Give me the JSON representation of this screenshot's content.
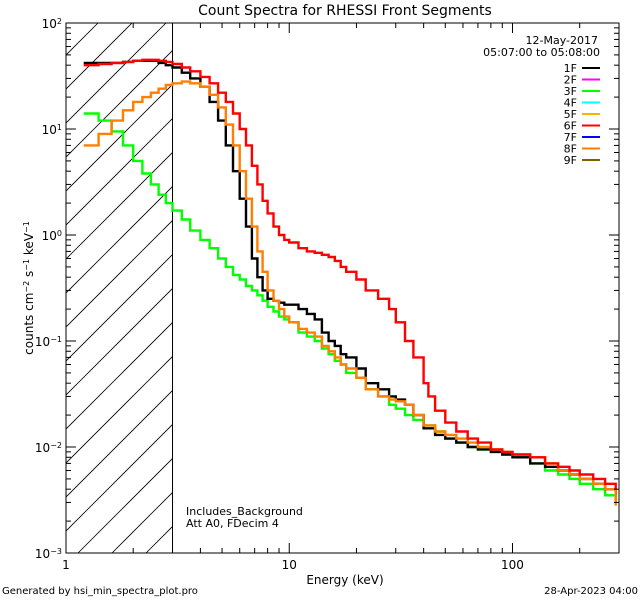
{
  "chart_data": {
    "type": "line",
    "title": "Count Spectra for RHESSI Front Segments",
    "xlabel": "Energy (keV)",
    "ylabel": "counts cm-2 s-1 keV-1",
    "x_scale": "log",
    "y_scale": "log",
    "xlim": [
      1,
      300
    ],
    "ylim": [
      0.001,
      100
    ],
    "x_ticks": [
      {
        "v": 1,
        "label": "1"
      },
      {
        "v": 10,
        "label": "10"
      },
      {
        "v": 100,
        "label": "100"
      }
    ],
    "y_ticks": [
      {
        "v": 0.001,
        "base": "10",
        "exp": "−3"
      },
      {
        "v": 0.01,
        "base": "10",
        "exp": "−2"
      },
      {
        "v": 0.1,
        "base": "10",
        "exp": "−1"
      },
      {
        "v": 1,
        "base": "10",
        "exp": "0"
      },
      {
        "v": 10,
        "base": "10",
        "exp": "1"
      },
      {
        "v": 100,
        "base": "10",
        "exp": "2"
      }
    ],
    "shaded_region": {
      "xmin": 1,
      "xmax": 3,
      "pattern": "diagonal-hatch"
    },
    "vertical_line_at": 3,
    "date_label": "12-May-2017",
    "time_range": "05:07:00 to 05:08:00",
    "annotations": [
      "Includes_Background",
      "Att A0, FDecim 4"
    ],
    "footer_left": "Generated by hsi_min_spectra_plot.pro",
    "footer_right": "28-Apr-2023 04:00",
    "series": [
      {
        "name": "1F",
        "color": "#000000",
        "x": [
          1.2,
          1.4,
          1.6,
          1.8,
          2,
          2.2,
          2.4,
          2.6,
          2.8,
          3,
          3.3,
          3.6,
          4,
          4.4,
          4.8,
          5.2,
          5.6,
          6,
          6.4,
          6.8,
          7.2,
          7.6,
          8,
          8.5,
          9,
          9.5,
          10,
          11,
          12,
          13,
          14,
          15,
          16,
          17,
          18,
          20,
          22,
          25,
          28,
          30,
          33,
          36,
          40,
          45,
          50,
          56,
          63,
          70,
          80,
          90,
          100,
          120,
          140,
          160,
          180,
          200,
          230,
          260,
          290
        ],
        "y": [
          42,
          42,
          42,
          43,
          44,
          44,
          44,
          42,
          40,
          38,
          34,
          30,
          25,
          18,
          12,
          7,
          4,
          2.2,
          1.2,
          0.6,
          0.4,
          0.3,
          0.25,
          0.24,
          0.23,
          0.22,
          0.22,
          0.2,
          0.18,
          0.16,
          0.12,
          0.1,
          0.09,
          0.075,
          0.07,
          0.055,
          0.04,
          0.035,
          0.03,
          0.028,
          0.025,
          0.02,
          0.015,
          0.013,
          0.012,
          0.011,
          0.01,
          0.0095,
          0.009,
          0.0085,
          0.008,
          0.007,
          0.0065,
          0.006,
          0.0055,
          0.005,
          0.0045,
          0.004,
          0.0035
        ]
      },
      {
        "name": "2F",
        "color": "#ff00ff",
        "x": [],
        "y": []
      },
      {
        "name": "3F",
        "color": "#00ff00",
        "x": [
          1.2,
          1.4,
          1.6,
          1.8,
          2,
          2.2,
          2.4,
          2.6,
          2.8,
          3,
          3.3,
          3.6,
          4,
          4.4,
          4.8,
          5.2,
          5.6,
          6,
          6.4,
          6.8,
          7.2,
          7.6,
          8,
          8.5,
          9,
          9.5,
          10,
          11,
          12,
          13,
          14,
          15,
          16,
          17,
          18,
          20,
          22,
          25,
          28,
          30,
          33,
          36,
          40,
          45,
          50,
          56,
          63,
          70,
          80,
          90,
          100,
          120,
          140,
          160,
          180,
          200,
          230,
          260,
          290
        ],
        "y": [
          14,
          12,
          9.5,
          7,
          5,
          3.8,
          3,
          2.4,
          2,
          1.7,
          1.4,
          1.1,
          0.9,
          0.75,
          0.6,
          0.5,
          0.42,
          0.38,
          0.33,
          0.3,
          0.27,
          0.24,
          0.21,
          0.19,
          0.17,
          0.16,
          0.15,
          0.12,
          0.11,
          0.1,
          0.085,
          0.075,
          0.065,
          0.06,
          0.05,
          0.045,
          0.035,
          0.03,
          0.025,
          0.023,
          0.02,
          0.018,
          0.016,
          0.014,
          0.012,
          0.011,
          0.01,
          0.0095,
          0.009,
          0.0085,
          0.008,
          0.007,
          0.006,
          0.0055,
          0.005,
          0.0045,
          0.004,
          0.0035,
          0.003
        ]
      },
      {
        "name": "4F",
        "color": "#00ffff",
        "x": [],
        "y": []
      },
      {
        "name": "5F",
        "color": "#ffb000",
        "x": [],
        "y": []
      },
      {
        "name": "6F",
        "color": "#ff0000",
        "x": [
          1.2,
          1.4,
          1.6,
          1.8,
          2,
          2.2,
          2.4,
          2.6,
          2.8,
          3,
          3.3,
          3.6,
          4,
          4.4,
          4.8,
          5.2,
          5.6,
          6,
          6.4,
          6.8,
          7.2,
          7.6,
          8,
          8.5,
          9,
          9.5,
          10,
          11,
          12,
          13,
          14,
          15,
          16,
          17,
          18,
          20,
          22,
          25,
          28,
          30,
          33,
          36,
          40,
          42,
          45,
          50,
          56,
          63,
          70,
          80,
          90,
          100,
          120,
          140,
          160,
          180,
          200,
          230,
          260,
          290
        ],
        "y": [
          40,
          41,
          42,
          43,
          44,
          45,
          45,
          44,
          43,
          41,
          38,
          35,
          31,
          27,
          22,
          18,
          14,
          10,
          7,
          4.5,
          3,
          2.1,
          1.6,
          1.2,
          1,
          0.9,
          0.85,
          0.75,
          0.7,
          0.68,
          0.65,
          0.62,
          0.57,
          0.5,
          0.45,
          0.38,
          0.3,
          0.25,
          0.2,
          0.15,
          0.1,
          0.07,
          0.04,
          0.03,
          0.022,
          0.017,
          0.014,
          0.012,
          0.011,
          0.0095,
          0.009,
          0.0085,
          0.008,
          0.007,
          0.0065,
          0.006,
          0.0055,
          0.005,
          0.0045,
          0.004
        ]
      },
      {
        "name": "7F",
        "color": "#0000ff",
        "x": [],
        "y": []
      },
      {
        "name": "8F",
        "color": "#ff7f00",
        "x": [
          1.2,
          1.4,
          1.6,
          1.8,
          2,
          2.2,
          2.4,
          2.6,
          2.8,
          3,
          3.3,
          3.6,
          4,
          4.4,
          4.8,
          5.2,
          5.6,
          6,
          6.4,
          6.8,
          7.2,
          7.6,
          8,
          8.5,
          9,
          9.5,
          10,
          11,
          12,
          13,
          14,
          15,
          16,
          17,
          18,
          20,
          22,
          25,
          28,
          30,
          33,
          36,
          40,
          45,
          50,
          56,
          63,
          70,
          80,
          90,
          100,
          120,
          140,
          160,
          180,
          200,
          230,
          260,
          290
        ],
        "y": [
          7,
          9,
          12,
          15,
          18,
          20,
          22,
          24,
          26,
          27,
          28,
          27,
          25,
          21,
          16,
          11,
          7,
          4,
          2.2,
          1.2,
          0.7,
          0.45,
          0.3,
          0.24,
          0.2,
          0.17,
          0.15,
          0.13,
          0.12,
          0.11,
          0.09,
          0.08,
          0.07,
          0.06,
          0.055,
          0.045,
          0.035,
          0.03,
          0.028,
          0.027,
          0.025,
          0.02,
          0.016,
          0.014,
          0.013,
          0.012,
          0.011,
          0.01,
          0.0095,
          0.009,
          0.0085,
          0.008,
          0.007,
          0.006,
          0.0055,
          0.005,
          0.0045,
          0.004,
          0.0028
        ]
      },
      {
        "name": "9F",
        "color": "#806000",
        "x": [],
        "y": []
      }
    ]
  }
}
